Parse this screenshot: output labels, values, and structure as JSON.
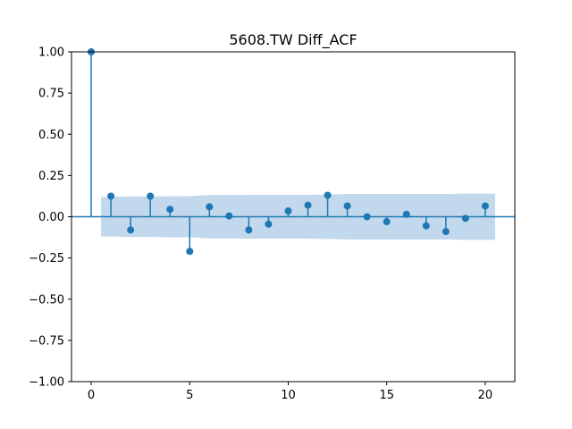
{
  "chart_data": {
    "type": "stem",
    "title": "5608.TW Diff_ACF",
    "xlabel": "",
    "ylabel": "",
    "xlim": [
      -1,
      21.5
    ],
    "ylim": [
      -1.0,
      1.0
    ],
    "x_ticks": [
      0,
      5,
      10,
      15,
      20
    ],
    "x_tick_labels": [
      "0",
      "5",
      "10",
      "15",
      "20"
    ],
    "y_ticks": [
      1.0,
      0.75,
      0.5,
      0.25,
      0.0,
      -0.25,
      -0.5,
      -0.75,
      -1.0
    ],
    "y_tick_labels": [
      "1.00",
      "0.75",
      "0.50",
      "0.25",
      "0.00",
      "−0.25",
      "−0.50",
      "−0.75",
      "−1.00"
    ],
    "lags": [
      0,
      1,
      2,
      3,
      4,
      5,
      6,
      7,
      8,
      9,
      10,
      11,
      12,
      13,
      14,
      15,
      16,
      17,
      18,
      19,
      20
    ],
    "acf": [
      1.0,
      0.125,
      -0.08,
      0.125,
      0.045,
      -0.21,
      0.06,
      0.005,
      -0.08,
      -0.045,
      0.035,
      0.07,
      0.13,
      0.065,
      0.0,
      -0.03,
      0.015,
      -0.055,
      -0.09,
      -0.01,
      0.065
    ],
    "confidence_band": {
      "lags": [
        0.5,
        1,
        2,
        3,
        4,
        5,
        6,
        7,
        8,
        9,
        10,
        11,
        12,
        13,
        14,
        15,
        16,
        17,
        18,
        19,
        20,
        20.5
      ],
      "upper": [
        0.12,
        0.12,
        0.123,
        0.123,
        0.125,
        0.125,
        0.132,
        0.132,
        0.133,
        0.133,
        0.133,
        0.133,
        0.135,
        0.138,
        0.138,
        0.138,
        0.138,
        0.138,
        0.138,
        0.14,
        0.14,
        0.14
      ],
      "lower": [
        -0.12,
        -0.12,
        -0.123,
        -0.123,
        -0.125,
        -0.125,
        -0.132,
        -0.132,
        -0.133,
        -0.133,
        -0.133,
        -0.133,
        -0.135,
        -0.138,
        -0.138,
        -0.138,
        -0.138,
        -0.138,
        -0.138,
        -0.14,
        -0.14,
        -0.14
      ]
    },
    "colors": {
      "stem": "#1f77b4",
      "band": "#aecbe5",
      "axis": "#000000"
    }
  }
}
